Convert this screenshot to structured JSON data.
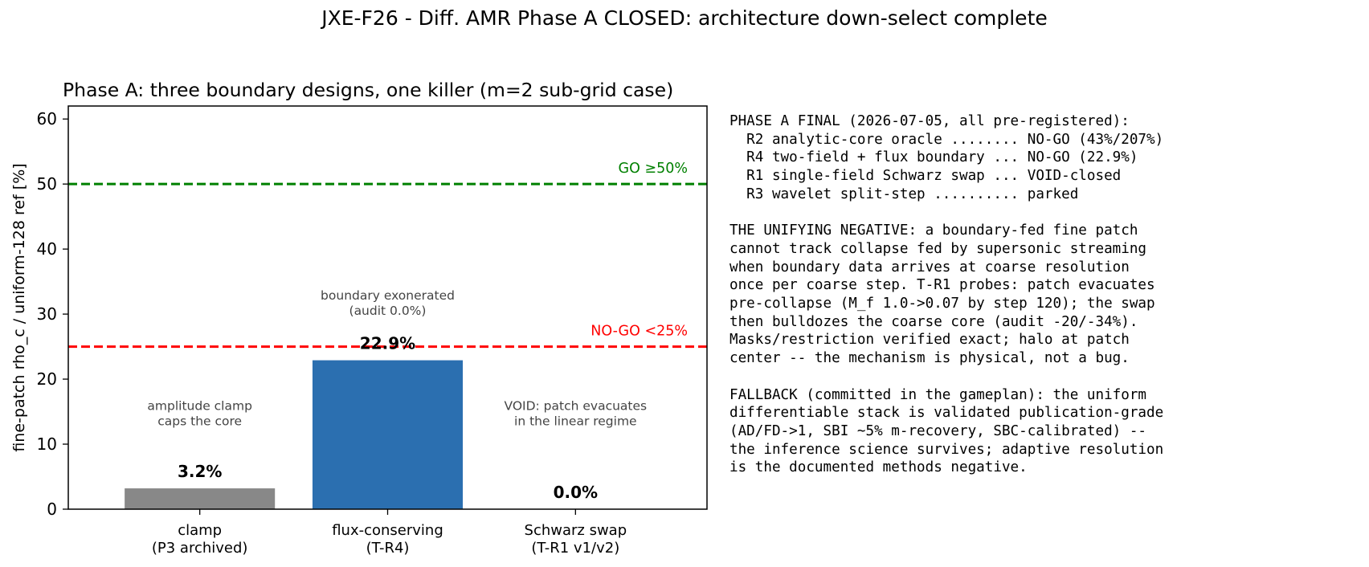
{
  "suptitle": "JXE-F26 - Diff. AMR Phase A CLOSED: architecture down-select complete",
  "chart_data": {
    "type": "bar",
    "title": "Phase A: three boundary designs, one killer (m=2 sub-grid case)",
    "xlabel": "",
    "ylabel": "fine-patch rho_c / uniform-128 ref [%]",
    "ylim": [
      0,
      62
    ],
    "yticks": [
      0,
      10,
      20,
      30,
      40,
      50,
      60
    ],
    "grid": false,
    "categories": [
      [
        "clamp",
        "(P3 archived)"
      ],
      [
        "flux-conserving",
        "(T-R4)"
      ],
      [
        "Schwarz swap",
        "(T-R1 v1/v2)"
      ]
    ],
    "values": [
      3.2,
      22.9,
      0.0
    ],
    "value_labels": [
      "3.2%",
      "22.9%",
      "0.0%"
    ],
    "bar_colors": [
      "#888888",
      "#2b6fb0",
      "#2b6fb0"
    ],
    "annotations": [
      {
        "lines": [
          "amplitude clamp",
          "caps the core"
        ],
        "category": 0,
        "y": 16
      },
      {
        "lines": [
          "boundary exonerated",
          "(audit 0.0%)"
        ],
        "category": 1,
        "y": 33
      },
      {
        "lines": [
          "VOID: patch evacuates",
          "in the linear regime"
        ],
        "category": 2,
        "y": 16
      }
    ],
    "thresholds": [
      {
        "value": 50,
        "label": "GO ≥50%",
        "color": "#008000"
      },
      {
        "value": 25,
        "label": "NO-GO <25%",
        "color": "#ff0000"
      }
    ]
  },
  "side_text": "PHASE A FINAL (2026-07-05, all pre-registered):\n  R2 analytic-core oracle ........ NO-GO (43%/207%)\n  R4 two-field + flux boundary ... NO-GO (22.9%)\n  R1 single-field Schwarz swap ... VOID-closed\n  R3 wavelet split-step .......... parked\n\nTHE UNIFYING NEGATIVE: a boundary-fed fine patch\ncannot track collapse fed by supersonic streaming\nwhen boundary data arrives at coarse resolution\nonce per coarse step. T-R1 probes: patch evacuates\npre-collapse (M_f 1.0->0.07 by step 120); the swap\nthen bulldozes the coarse core (audit -20/-34%).\nMasks/restriction verified exact; halo at patch\ncenter -- the mechanism is physical, not a bug.\n\nFALLBACK (committed in the gameplan): the uniform\ndifferentiable stack is validated publication-grade\n(AD/FD->1, SBI ~5% m-recovery, SBC-calibrated) --\nthe inference science survives; adaptive resolution\nis the documented methods negative."
}
